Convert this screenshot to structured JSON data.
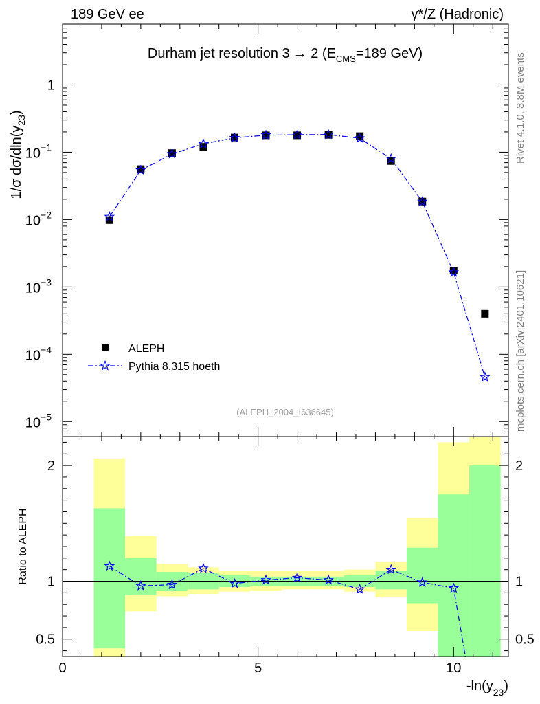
{
  "header": {
    "left": "189 GeV ee",
    "right": "γ*/Z (Hadronic)"
  },
  "side_labels": {
    "rivet": "Rivet 4.1.0,  3.8M events",
    "mcplots": "mcplots.cern.ch [arXiv:2401.10621]"
  },
  "chart_data": [
    {
      "type": "scatter",
      "title": "Durham jet resolution 3→ 2 (E_CMS=189 GeV)",
      "title_main": "Durham jet resolution 3",
      "title_arrow": "→",
      "title_rest": " 2 (E",
      "title_sub": "CMS",
      "title_end": "=189 GeV)",
      "ylabel": "1/σ dσ/dln(y_23)",
      "ylabel_main": "1/σ  dσ/dln(y",
      "ylabel_sub": "23",
      "ylabel_end": ")",
      "yscale": "log",
      "ylim": [
        6e-06,
        8
      ],
      "xlim": [
        0,
        11.4
      ],
      "watermark": "(ALEPH_2004_I636645)",
      "y_ticks": [
        {
          "value": 1e-05,
          "base": "10",
          "exp": "−5"
        },
        {
          "value": 0.0001,
          "base": "10",
          "exp": "−4"
        },
        {
          "value": 0.001,
          "base": "10",
          "exp": "−3"
        },
        {
          "value": 0.01,
          "base": "10",
          "exp": "−2"
        },
        {
          "value": 0.1,
          "base": "10",
          "exp": "−1"
        },
        {
          "value": 1,
          "base": "1",
          "exp": ""
        }
      ],
      "legend_position": "bottom-left",
      "series": [
        {
          "name": "ALEPH",
          "marker": "square",
          "color": "#000000",
          "x": [
            1.2,
            2.0,
            2.8,
            3.6,
            4.4,
            5.2,
            6.0,
            6.8,
            7.6,
            8.4,
            9.2,
            10.0,
            10.8
          ],
          "values": [
            0.0098,
            0.056,
            0.097,
            0.12,
            0.165,
            0.178,
            0.178,
            0.181,
            0.173,
            0.074,
            0.0185,
            0.00175,
            0.0004
          ]
        },
        {
          "name": "Pythia 8.315 hoeth",
          "marker": "star",
          "line": "dash-dot",
          "color": "#0000ee",
          "x": [
            1.2,
            2.0,
            2.8,
            3.6,
            4.4,
            5.2,
            6.0,
            6.8,
            7.6,
            8.4,
            9.2,
            10.0,
            10.8
          ],
          "values": [
            0.011,
            0.054,
            0.094,
            0.133,
            0.163,
            0.179,
            0.182,
            0.183,
            0.161,
            0.08,
            0.0184,
            0.00165,
            4.6e-05
          ]
        }
      ]
    },
    {
      "type": "line",
      "ylabel": "Ratio to ALEPH",
      "xlabel": "-ln(y_23)",
      "xlabel_main": "-ln(y",
      "xlabel_sub": "23",
      "xlabel_end": ")",
      "xlim": [
        0,
        11.4
      ],
      "ylim": [
        0.35,
        2.25
      ],
      "x_ticks": [
        0,
        5,
        10
      ],
      "y_ticks": [
        0.5,
        1,
        2
      ],
      "reference_line": 1,
      "bins": [
        {
          "lo": 0.8,
          "hi": 1.6,
          "stat_lo": 0.42,
          "stat_hi": 1.63,
          "tot_lo": 0.35,
          "tot_hi": 2.06
        },
        {
          "lo": 1.6,
          "hi": 2.4,
          "stat_lo": 0.88,
          "stat_hi": 1.2,
          "tot_lo": 0.74,
          "tot_hi": 1.39
        },
        {
          "lo": 2.4,
          "hi": 3.2,
          "stat_lo": 0.92,
          "stat_hi": 1.08,
          "tot_lo": 0.87,
          "tot_hi": 1.15
        },
        {
          "lo": 3.2,
          "hi": 4.0,
          "stat_lo": 0.93,
          "stat_hi": 1.07,
          "tot_lo": 0.89,
          "tot_hi": 1.12
        },
        {
          "lo": 4.0,
          "hi": 4.8,
          "stat_lo": 0.95,
          "stat_hi": 1.05,
          "tot_lo": 0.91,
          "tot_hi": 1.09
        },
        {
          "lo": 4.8,
          "hi": 5.6,
          "stat_lo": 0.96,
          "stat_hi": 1.04,
          "tot_lo": 0.92,
          "tot_hi": 1.09
        },
        {
          "lo": 5.6,
          "hi": 6.4,
          "stat_lo": 0.96,
          "stat_hi": 1.04,
          "tot_lo": 0.93,
          "tot_hi": 1.09
        },
        {
          "lo": 6.4,
          "hi": 7.2,
          "stat_lo": 0.96,
          "stat_hi": 1.04,
          "tot_lo": 0.93,
          "tot_hi": 1.09
        },
        {
          "lo": 7.2,
          "hi": 8.0,
          "stat_lo": 0.95,
          "stat_hi": 1.05,
          "tot_lo": 0.91,
          "tot_hi": 1.1
        },
        {
          "lo": 8.0,
          "hi": 8.8,
          "stat_lo": 0.93,
          "stat_hi": 1.09,
          "tot_lo": 0.86,
          "tot_hi": 1.17
        },
        {
          "lo": 8.8,
          "hi": 9.6,
          "stat_lo": 0.81,
          "stat_hi": 1.29,
          "tot_lo": 0.57,
          "tot_hi": 1.55
        },
        {
          "lo": 9.6,
          "hi": 10.4,
          "stat_lo": 0.35,
          "stat_hi": 1.75,
          "tot_lo": 0.35,
          "tot_hi": 2.2
        },
        {
          "lo": 10.4,
          "hi": 11.2,
          "stat_lo": 0.35,
          "stat_hi": 2.0,
          "tot_lo": 0.35,
          "tot_hi": 2.25
        }
      ],
      "ratio_x": [
        1.2,
        2.0,
        2.8,
        3.6,
        4.4,
        5.2,
        6.0,
        6.8,
        7.6,
        8.4,
        9.2,
        10.0,
        10.3
      ],
      "ratio_values": [
        1.13,
        0.96,
        0.97,
        1.11,
        0.98,
        1.01,
        1.03,
        1.01,
        0.93,
        1.1,
        0.99,
        0.94,
        0.35
      ],
      "ratio_markers": 12,
      "stat_color": "#99ff99",
      "tot_color": "#ffff99"
    }
  ]
}
